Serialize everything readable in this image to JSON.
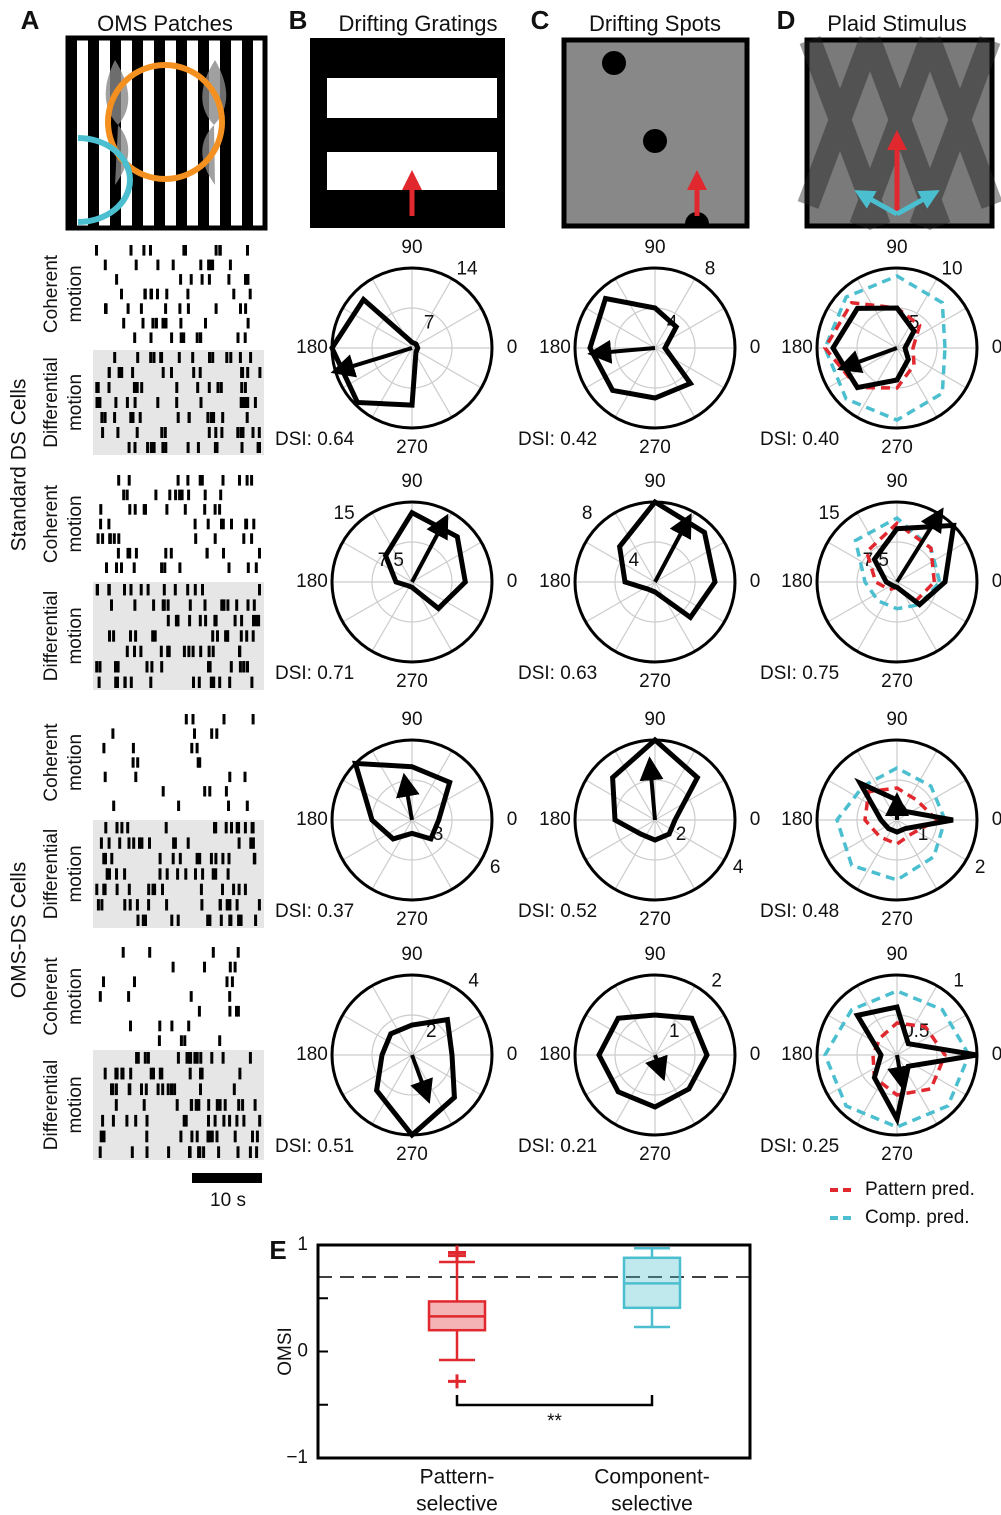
{
  "figure": {
    "panel_labels": [
      "A",
      "B",
      "C",
      "D",
      "E"
    ],
    "stimulus_titles": [
      "OMS Patches",
      "Drifting Gratings",
      "Drifting Spots",
      "Plaid Stimulus"
    ],
    "group_labels": [
      "Standard DS Cells",
      "OMS-DS Cells"
    ],
    "condition_labels": [
      [
        "Coherent",
        "motion"
      ],
      [
        "Differential",
        "motion"
      ]
    ],
    "scale_bar": "10 s",
    "legend": [
      {
        "name": "Pattern pred.",
        "color": "#e0282e"
      },
      {
        "name": "Comp. pred.",
        "color": "#4bbfcf"
      }
    ]
  },
  "chart_data": [
    {
      "type": "polar",
      "color": "#000000",
      "angles": [
        0,
        45,
        90,
        135,
        180,
        225,
        270,
        315
      ],
      "values": [
        1,
        1,
        1,
        12,
        14,
        13.5,
        10,
        1
      ],
      "rlim": [
        0,
        14
      ],
      "rticks": [
        7,
        14
      ],
      "rtick_angle": 55,
      "angle_ticks": [
        90,
        180,
        270,
        0
      ],
      "vector": {
        "angle": 197,
        "length": 13.5
      },
      "annotation": "DSI: 0.64"
    },
    {
      "type": "polar",
      "color": "#000000",
      "angles": [
        0,
        45,
        90,
        135,
        180,
        225,
        270,
        315
      ],
      "values": [
        1,
        3,
        4,
        7,
        6.5,
        6,
        5,
        5
      ],
      "rlim": [
        0,
        8
      ],
      "rticks": [
        4,
        8
      ],
      "rtick_angle": 55,
      "angle_ticks": [
        90,
        180,
        270,
        0
      ],
      "vector": {
        "angle": 185,
        "length": 6
      },
      "annotation": "DSI: 0.42"
    },
    {
      "type": "polar",
      "color": "#000000",
      "angles": [
        0,
        45,
        90,
        135,
        180,
        225,
        270,
        315
      ],
      "values": [
        1,
        3,
        5,
        7,
        8,
        7,
        4,
        2
      ],
      "pattern_pred": [
        2,
        4,
        5,
        8,
        9,
        7,
        5,
        3
      ],
      "comp_pred": [
        6,
        8,
        9,
        9,
        9,
        9,
        9,
        8
      ],
      "rlim": [
        0,
        10
      ],
      "rticks": [
        5,
        10
      ],
      "rtick_angle": 55,
      "angle_ticks": [
        90,
        180,
        270,
        0
      ],
      "vector": {
        "angle": 200,
        "length": 7
      },
      "annotation": "DSI: 0.40"
    },
    {
      "type": "polar",
      "color": "#000000",
      "angles": [
        0,
        45,
        90,
        135,
        180,
        225,
        270,
        315
      ],
      "values": [
        10,
        12,
        13,
        7,
        3,
        1,
        1,
        7
      ],
      "rlim": [
        0,
        15
      ],
      "rticks": [
        7.5,
        15
      ],
      "rtick_angle": 135,
      "angle_ticks": [
        90,
        180,
        270,
        0
      ],
      "vector": {
        "angle": 62,
        "length": 13
      },
      "annotation": "DSI: 0.71"
    },
    {
      "type": "polar",
      "color": "#000000",
      "angles": [
        0,
        45,
        90,
        135,
        180,
        225,
        270,
        315
      ],
      "values": [
        6,
        7,
        8,
        5,
        3,
        1,
        1,
        5
      ],
      "rlim": [
        0,
        8
      ],
      "rticks": [
        4,
        8
      ],
      "rtick_angle": 135,
      "angle_ticks": [
        90,
        180,
        270,
        0
      ],
      "vector": {
        "angle": 62,
        "length": 7
      },
      "annotation": "DSI: 0.63"
    },
    {
      "type": "polar",
      "color": "#000000",
      "angles": [
        0,
        45,
        90,
        135,
        180,
        225,
        270,
        315
      ],
      "values": [
        9,
        15,
        10,
        6,
        2,
        1,
        1,
        6
      ],
      "pattern_pred": [
        7,
        9,
        11,
        8,
        4,
        2,
        1,
        5
      ],
      "comp_pred": [
        8,
        9,
        12,
        11,
        6,
        5,
        5,
        6
      ],
      "rlim": [
        0,
        15
      ],
      "rticks": [
        7.5,
        15
      ],
      "rtick_angle": 135,
      "angle_ticks": [
        90,
        180,
        270,
        0
      ],
      "vector": {
        "angle": 58,
        "length": 15
      },
      "annotation": "DSI: 0.75"
    },
    {
      "type": "polar",
      "color": "#000000",
      "angles": [
        0,
        45,
        90,
        135,
        180,
        225,
        270,
        315
      ],
      "values": [
        2,
        4,
        4,
        6,
        3,
        2,
        1,
        2
      ],
      "rlim": [
        0,
        6
      ],
      "rticks": [
        3,
        6
      ],
      "rtick_angle": -30,
      "angle_ticks": [
        90,
        180,
        270,
        0
      ],
      "vector": {
        "angle": 100,
        "length": 3
      },
      "annotation": "DSI: 0.37"
    },
    {
      "type": "polar",
      "color": "#000000",
      "angles": [
        0,
        45,
        90,
        135,
        180,
        225,
        270,
        315
      ],
      "values": [
        1,
        3,
        4,
        3,
        2,
        1,
        1,
        1
      ],
      "rlim": [
        0,
        4
      ],
      "rticks": [
        2,
        4
      ],
      "rtick_angle": -30,
      "angle_ticks": [
        90,
        180,
        270,
        0
      ],
      "vector": {
        "angle": 95,
        "length": 2.8
      },
      "annotation": "DSI: 0.52"
    },
    {
      "type": "polar",
      "color": "#000000",
      "angles": [
        0,
        45,
        90,
        135,
        180,
        225,
        270,
        315
      ],
      "values": [
        1.4,
        0.3,
        0.5,
        1.3,
        0.4,
        0.3,
        0.3,
        0.3
      ],
      "pattern_pred": [
        1,
        0.7,
        0.8,
        1,
        0.8,
        0.6,
        0.6,
        0.5
      ],
      "comp_pred": [
        1.2,
        1.2,
        1.3,
        1.2,
        1.5,
        1.6,
        1.5,
        1.3
      ],
      "rlim": [
        0,
        2
      ],
      "rticks": [
        1,
        2
      ],
      "rtick_angle": -30,
      "angle_ticks": [
        90,
        180,
        270,
        0
      ],
      "vector": {
        "angle": 90,
        "length": 0.5
      },
      "annotation": "DSI: 0.48"
    },
    {
      "type": "polar",
      "color": "#000000",
      "angles": [
        0,
        45,
        90,
        135,
        180,
        225,
        270,
        315
      ],
      "values": [
        2,
        2.5,
        1.5,
        1.5,
        1.5,
        2.5,
        4,
        3
      ],
      "rlim": [
        0,
        4
      ],
      "rticks": [
        2,
        4
      ],
      "rtick_angle": 50,
      "angle_ticks": [
        90,
        180,
        270,
        0
      ],
      "vector": {
        "angle": 290,
        "length": 2.2
      },
      "annotation": "DSI: 0.51"
    },
    {
      "type": "polar",
      "color": "#000000",
      "angles": [
        0,
        45,
        90,
        135,
        180,
        225,
        270,
        315
      ],
      "values": [
        1.3,
        1.3,
        1,
        1.3,
        1.4,
        1.3,
        1.3,
        1.2
      ],
      "rlim": [
        0,
        2
      ],
      "rticks": [
        1,
        2
      ],
      "rtick_angle": 50,
      "angle_ticks": [
        90,
        180,
        270,
        0
      ],
      "vector": {
        "angle": 290,
        "length": 0.5
      },
      "annotation": "DSI: 0.21"
    },
    {
      "type": "polar",
      "color": "#000000",
      "angles": [
        0,
        45,
        90,
        135,
        180,
        225,
        270,
        315
      ],
      "values": [
        1,
        0.2,
        0.6,
        0.7,
        0.2,
        0.4,
        0.8,
        0.2
      ],
      "pattern_pred": [
        0.6,
        0.5,
        0.4,
        0.3,
        0.3,
        0.4,
        0.5,
        0.6
      ],
      "comp_pred": [
        0.9,
        0.8,
        0.8,
        0.8,
        0.9,
        0.9,
        0.9,
        0.9
      ],
      "rlim": [
        0,
        1
      ],
      "rticks": [
        0.5,
        1
      ],
      "rtick_angle": 50,
      "angle_ticks": [
        90,
        180,
        270,
        0
      ],
      "vector": {
        "angle": 280,
        "length": 0.35
      },
      "annotation": "DSI: 0.25"
    },
    {
      "type": "box",
      "ylabel": "OMSI",
      "categories": [
        [
          "Pattern-",
          "selective"
        ],
        [
          "Component-",
          "selective"
        ]
      ],
      "series": [
        {
          "color": "#e0282e",
          "whislo": -0.08,
          "q1": 0.2,
          "med": 0.33,
          "q3": 0.47,
          "whishi": 0.84,
          "fliers": [
            -0.28,
            0.9,
            0.93
          ]
        },
        {
          "color": "#4bbfcf",
          "whislo": 0.23,
          "q1": 0.41,
          "med": 0.64,
          "q3": 0.88,
          "whishi": 0.97,
          "fliers": []
        }
      ],
      "ylim": [
        -1,
        1
      ],
      "yticks": [
        {
          "value": -1,
          "label": "−1"
        },
        0,
        1
      ],
      "minor_yticks": [
        -0.5,
        0.5
      ],
      "threshold": 0.7,
      "significance": "**"
    }
  ]
}
